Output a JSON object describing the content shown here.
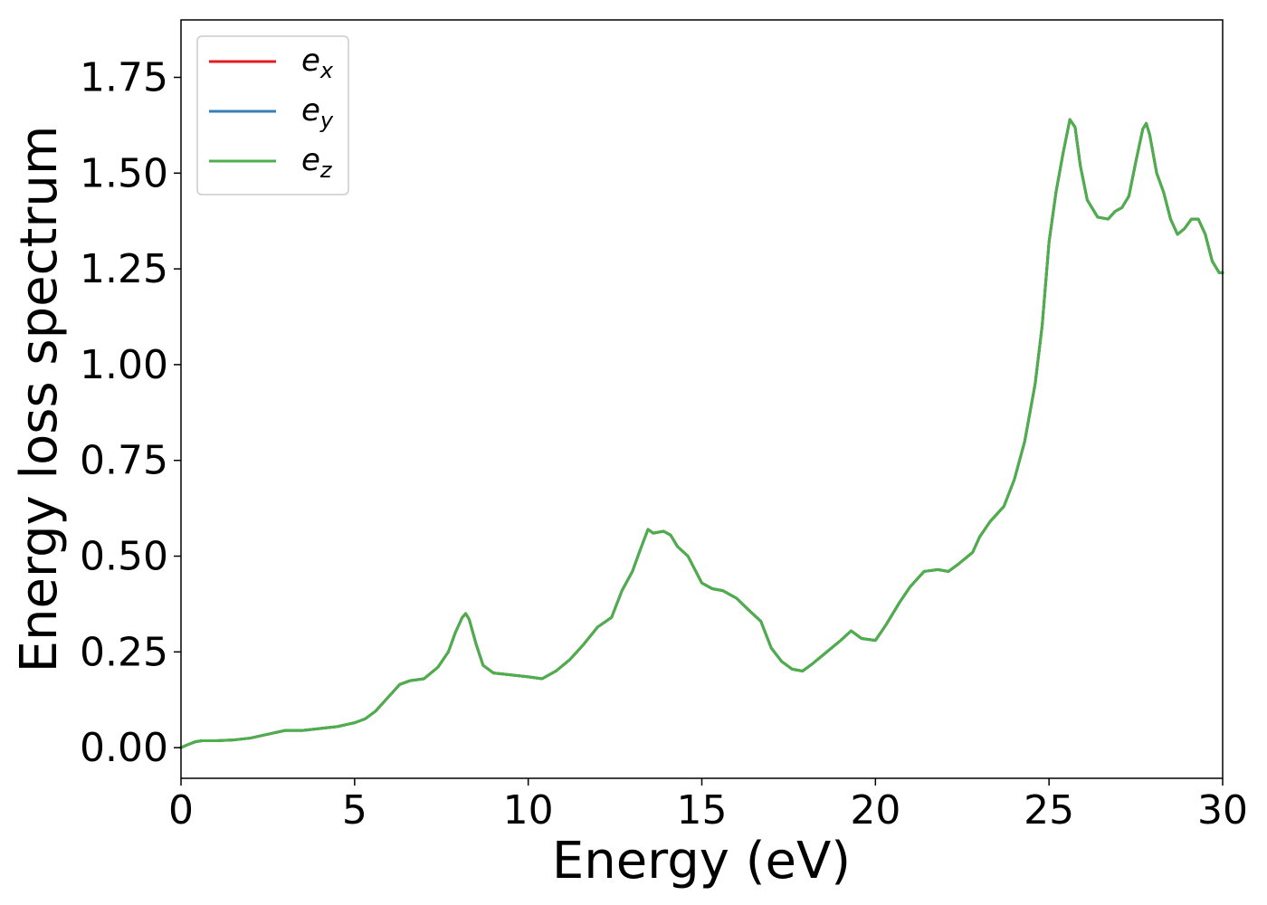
{
  "chart_data": {
    "type": "line",
    "title": "",
    "xlabel": "Energy (eV)",
    "ylabel": "Energy loss spectrum",
    "xlim": [
      0,
      30
    ],
    "ylim": [
      -0.08,
      1.9
    ],
    "xticks": [
      0,
      5,
      10,
      15,
      20,
      25,
      30
    ],
    "xtick_labels": [
      "0",
      "5",
      "10",
      "15",
      "20",
      "25",
      "30"
    ],
    "yticks": [
      0.0,
      0.25,
      0.5,
      0.75,
      1.0,
      1.25,
      1.5,
      1.75
    ],
    "ytick_labels": [
      "0.00",
      "0.25",
      "0.50",
      "0.75",
      "1.00",
      "1.25",
      "1.50",
      "1.75"
    ],
    "grid": false,
    "legend_position": "top-left",
    "x": [
      0,
      0.2,
      0.4,
      0.6,
      1.0,
      1.5,
      2.0,
      2.5,
      3.0,
      3.5,
      4.0,
      4.5,
      5.0,
      5.3,
      5.6,
      6.0,
      6.3,
      6.6,
      7.0,
      7.4,
      7.7,
      7.9,
      8.1,
      8.2,
      8.3,
      8.5,
      8.7,
      9.0,
      9.5,
      10.0,
      10.4,
      10.8,
      11.2,
      11.6,
      12.0,
      12.4,
      12.7,
      13.0,
      13.2,
      13.45,
      13.6,
      13.9,
      14.1,
      14.3,
      14.6,
      15.0,
      15.3,
      15.6,
      16.0,
      16.4,
      16.7,
      17.0,
      17.3,
      17.6,
      17.9,
      18.2,
      18.6,
      19.0,
      19.3,
      19.6,
      20.0,
      20.3,
      20.7,
      21.0,
      21.4,
      21.8,
      22.1,
      22.4,
      22.8,
      23.0,
      23.3,
      23.7,
      24.0,
      24.3,
      24.6,
      24.8,
      25.0,
      25.2,
      25.4,
      25.6,
      25.75,
      25.9,
      26.1,
      26.4,
      26.7,
      26.9,
      27.1,
      27.3,
      27.5,
      27.7,
      27.8,
      27.9,
      28.1,
      28.3,
      28.5,
      28.7,
      28.9,
      29.1,
      29.3,
      29.5,
      29.7,
      29.9,
      30.0
    ],
    "series": [
      {
        "name": "e_x",
        "label_base": "e",
        "label_sub": "x",
        "color": "#e41a1c",
        "values": [
          0.0,
          0.008,
          0.015,
          0.018,
          0.018,
          0.02,
          0.025,
          0.035,
          0.045,
          0.045,
          0.05,
          0.055,
          0.065,
          0.075,
          0.095,
          0.135,
          0.165,
          0.175,
          0.18,
          0.21,
          0.25,
          0.3,
          0.34,
          0.35,
          0.335,
          0.27,
          0.215,
          0.195,
          0.19,
          0.185,
          0.18,
          0.2,
          0.23,
          0.27,
          0.315,
          0.34,
          0.41,
          0.46,
          0.51,
          0.57,
          0.56,
          0.565,
          0.555,
          0.525,
          0.5,
          0.43,
          0.415,
          0.41,
          0.39,
          0.355,
          0.33,
          0.26,
          0.225,
          0.205,
          0.2,
          0.22,
          0.25,
          0.28,
          0.305,
          0.285,
          0.28,
          0.32,
          0.38,
          0.42,
          0.46,
          0.465,
          0.46,
          0.48,
          0.51,
          0.55,
          0.59,
          0.63,
          0.7,
          0.8,
          0.95,
          1.1,
          1.32,
          1.45,
          1.55,
          1.64,
          1.62,
          1.52,
          1.43,
          1.385,
          1.38,
          1.4,
          1.41,
          1.44,
          1.53,
          1.615,
          1.63,
          1.6,
          1.5,
          1.45,
          1.38,
          1.34,
          1.355,
          1.38,
          1.38,
          1.34,
          1.27,
          1.24,
          1.24
        ]
      },
      {
        "name": "e_y",
        "label_base": "e",
        "label_sub": "y",
        "color": "#377eb8",
        "values": [
          0.0,
          0.008,
          0.015,
          0.018,
          0.018,
          0.02,
          0.025,
          0.035,
          0.045,
          0.045,
          0.05,
          0.055,
          0.065,
          0.075,
          0.095,
          0.135,
          0.165,
          0.175,
          0.18,
          0.21,
          0.25,
          0.3,
          0.34,
          0.35,
          0.335,
          0.27,
          0.215,
          0.195,
          0.19,
          0.185,
          0.18,
          0.2,
          0.23,
          0.27,
          0.315,
          0.34,
          0.41,
          0.46,
          0.51,
          0.57,
          0.56,
          0.565,
          0.555,
          0.525,
          0.5,
          0.43,
          0.415,
          0.41,
          0.39,
          0.355,
          0.33,
          0.26,
          0.225,
          0.205,
          0.2,
          0.22,
          0.25,
          0.28,
          0.305,
          0.285,
          0.28,
          0.32,
          0.38,
          0.42,
          0.46,
          0.465,
          0.46,
          0.48,
          0.51,
          0.55,
          0.59,
          0.63,
          0.7,
          0.8,
          0.95,
          1.1,
          1.32,
          1.45,
          1.55,
          1.64,
          1.62,
          1.52,
          1.43,
          1.385,
          1.38,
          1.4,
          1.41,
          1.44,
          1.53,
          1.615,
          1.63,
          1.6,
          1.5,
          1.45,
          1.38,
          1.34,
          1.355,
          1.38,
          1.38,
          1.34,
          1.27,
          1.24,
          1.24
        ]
      },
      {
        "name": "e_z",
        "label_base": "e",
        "label_sub": "z",
        "color": "#4daf4a",
        "values": [
          0.0,
          0.008,
          0.015,
          0.018,
          0.018,
          0.02,
          0.025,
          0.035,
          0.045,
          0.045,
          0.05,
          0.055,
          0.065,
          0.075,
          0.095,
          0.135,
          0.165,
          0.175,
          0.18,
          0.21,
          0.25,
          0.3,
          0.34,
          0.35,
          0.335,
          0.27,
          0.215,
          0.195,
          0.19,
          0.185,
          0.18,
          0.2,
          0.23,
          0.27,
          0.315,
          0.34,
          0.41,
          0.46,
          0.51,
          0.57,
          0.56,
          0.565,
          0.555,
          0.525,
          0.5,
          0.43,
          0.415,
          0.41,
          0.39,
          0.355,
          0.33,
          0.26,
          0.225,
          0.205,
          0.2,
          0.22,
          0.25,
          0.28,
          0.305,
          0.285,
          0.28,
          0.32,
          0.38,
          0.42,
          0.46,
          0.465,
          0.46,
          0.48,
          0.51,
          0.55,
          0.59,
          0.63,
          0.7,
          0.8,
          0.95,
          1.1,
          1.32,
          1.45,
          1.55,
          1.64,
          1.62,
          1.52,
          1.43,
          1.385,
          1.38,
          1.4,
          1.41,
          1.44,
          1.53,
          1.615,
          1.63,
          1.6,
          1.5,
          1.45,
          1.38,
          1.34,
          1.355,
          1.38,
          1.38,
          1.34,
          1.27,
          1.24,
          1.24
        ]
      }
    ]
  }
}
